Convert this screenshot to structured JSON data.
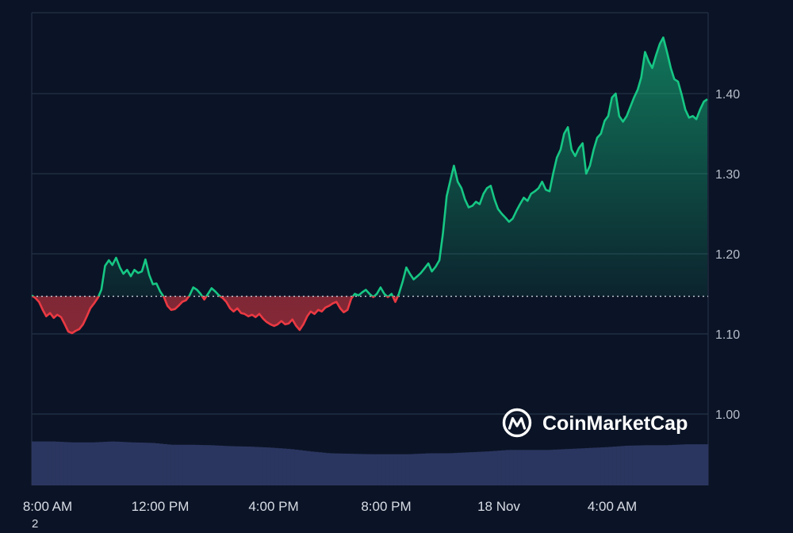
{
  "chart_data": {
    "type": "line",
    "ylim": [
      0.91,
      1.49
    ],
    "yticks": [
      "1.00",
      "1.10",
      "1.20",
      "1.30",
      "1.40"
    ],
    "xticks": [
      "8:00 AM",
      "12:00 PM",
      "4:00 PM",
      "8:00 PM",
      "18 Nov",
      "4:00 AM"
    ],
    "x_range_hours": [
      0,
      24
    ],
    "baseline": 1.147,
    "colors": {
      "up": "#16c784",
      "down": "#ea3943",
      "volume": "#2b3660",
      "grid": "#243046",
      "baseline": "#c9ced8"
    },
    "price": [
      [
        0.0,
        1.148
      ],
      [
        0.16,
        1.145
      ],
      [
        0.33,
        1.14
      ],
      [
        0.5,
        1.13
      ],
      [
        0.66,
        1.122
      ],
      [
        0.83,
        1.126
      ],
      [
        1.0,
        1.12
      ],
      [
        1.16,
        1.124
      ],
      [
        1.33,
        1.121
      ],
      [
        1.5,
        1.112
      ],
      [
        1.66,
        1.103
      ],
      [
        1.83,
        1.101
      ],
      [
        2.0,
        1.104
      ],
      [
        2.16,
        1.106
      ],
      [
        2.33,
        1.112
      ],
      [
        2.5,
        1.122
      ],
      [
        2.66,
        1.132
      ],
      [
        2.83,
        1.138
      ],
      [
        3.0,
        1.145
      ],
      [
        3.16,
        1.155
      ],
      [
        3.33,
        1.185
      ],
      [
        3.5,
        1.192
      ],
      [
        3.66,
        1.186
      ],
      [
        3.83,
        1.195
      ],
      [
        4.0,
        1.183
      ],
      [
        4.16,
        1.175
      ],
      [
        4.33,
        1.18
      ],
      [
        4.5,
        1.172
      ],
      [
        4.66,
        1.18
      ],
      [
        4.83,
        1.176
      ],
      [
        5.0,
        1.178
      ],
      [
        5.16,
        1.193
      ],
      [
        5.33,
        1.174
      ],
      [
        5.5,
        1.162
      ],
      [
        5.66,
        1.163
      ],
      [
        5.83,
        1.153
      ],
      [
        6.0,
        1.146
      ],
      [
        6.16,
        1.135
      ],
      [
        6.33,
        1.13
      ],
      [
        6.5,
        1.131
      ],
      [
        6.66,
        1.135
      ],
      [
        6.83,
        1.14
      ],
      [
        7.0,
        1.142
      ],
      [
        7.16,
        1.148
      ],
      [
        7.33,
        1.158
      ],
      [
        7.5,
        1.155
      ],
      [
        7.66,
        1.15
      ],
      [
        7.83,
        1.143
      ],
      [
        8.0,
        1.15
      ],
      [
        8.16,
        1.157
      ],
      [
        8.33,
        1.153
      ],
      [
        8.5,
        1.148
      ],
      [
        8.66,
        1.145
      ],
      [
        8.83,
        1.14
      ],
      [
        9.0,
        1.132
      ],
      [
        9.16,
        1.128
      ],
      [
        9.33,
        1.132
      ],
      [
        9.5,
        1.126
      ],
      [
        9.66,
        1.125
      ],
      [
        9.83,
        1.122
      ],
      [
        10.0,
        1.124
      ],
      [
        10.16,
        1.121
      ],
      [
        10.33,
        1.125
      ],
      [
        10.5,
        1.119
      ],
      [
        10.66,
        1.115
      ],
      [
        10.83,
        1.112
      ],
      [
        11.0,
        1.11
      ],
      [
        11.16,
        1.112
      ],
      [
        11.33,
        1.116
      ],
      [
        11.5,
        1.112
      ],
      [
        11.66,
        1.113
      ],
      [
        11.83,
        1.118
      ],
      [
        12.0,
        1.11
      ],
      [
        12.16,
        1.105
      ],
      [
        12.33,
        1.112
      ],
      [
        12.5,
        1.122
      ],
      [
        12.66,
        1.128
      ],
      [
        12.83,
        1.125
      ],
      [
        13.0,
        1.13
      ],
      [
        13.16,
        1.128
      ],
      [
        13.33,
        1.133
      ],
      [
        13.5,
        1.135
      ],
      [
        13.66,
        1.138
      ],
      [
        13.83,
        1.14
      ],
      [
        14.0,
        1.132
      ],
      [
        14.16,
        1.127
      ],
      [
        14.33,
        1.13
      ],
      [
        14.5,
        1.144
      ],
      [
        14.66,
        1.15
      ],
      [
        14.83,
        1.148
      ],
      [
        15.0,
        1.152
      ],
      [
        15.16,
        1.155
      ],
      [
        15.33,
        1.15
      ],
      [
        15.5,
        1.146
      ],
      [
        15.66,
        1.15
      ],
      [
        15.83,
        1.158
      ],
      [
        16.0,
        1.15
      ],
      [
        16.16,
        1.146
      ],
      [
        16.33,
        1.15
      ],
      [
        16.5,
        1.14
      ],
      [
        16.66,
        1.15
      ],
      [
        16.83,
        1.165
      ],
      [
        17.0,
        1.183
      ],
      [
        17.16,
        1.175
      ],
      [
        17.33,
        1.168
      ],
      [
        17.5,
        1.172
      ],
      [
        17.66,
        1.176
      ],
      [
        17.83,
        1.182
      ],
      [
        18.0,
        1.188
      ],
      [
        18.16,
        1.178
      ],
      [
        18.33,
        1.184
      ],
      [
        18.5,
        1.192
      ],
      [
        18.66,
        1.225
      ],
      [
        18.83,
        1.272
      ],
      [
        19.0,
        1.292
      ],
      [
        19.16,
        1.31
      ],
      [
        19.33,
        1.29
      ],
      [
        19.5,
        1.282
      ],
      [
        19.66,
        1.268
      ],
      [
        19.83,
        1.258
      ],
      [
        20.0,
        1.26
      ],
      [
        20.16,
        1.265
      ],
      [
        20.33,
        1.262
      ],
      [
        20.5,
        1.275
      ],
      [
        20.66,
        1.282
      ],
      [
        20.83,
        1.285
      ],
      [
        21.0,
        1.268
      ],
      [
        21.16,
        1.256
      ],
      [
        21.33,
        1.25
      ],
      [
        21.5,
        1.245
      ],
      [
        21.66,
        1.24
      ],
      [
        21.83,
        1.244
      ],
      [
        22.0,
        1.254
      ],
      [
        22.16,
        1.262
      ],
      [
        22.33,
        1.27
      ],
      [
        22.5,
        1.266
      ],
      [
        22.66,
        1.275
      ],
      [
        22.83,
        1.278
      ],
      [
        23.0,
        1.282
      ],
      [
        23.16,
        1.29
      ],
      [
        23.33,
        1.28
      ],
      [
        23.5,
        1.278
      ],
      [
        23.66,
        1.3
      ],
      [
        23.83,
        1.32
      ],
      [
        24.0,
        1.33
      ],
      [
        24.16,
        1.35
      ],
      [
        24.33,
        1.358
      ],
      [
        24.5,
        1.33
      ],
      [
        24.66,
        1.322
      ],
      [
        24.83,
        1.332
      ],
      [
        25.0,
        1.338
      ],
      [
        25.16,
        1.3
      ],
      [
        25.33,
        1.31
      ],
      [
        25.5,
        1.33
      ],
      [
        25.66,
        1.345
      ],
      [
        25.83,
        1.35
      ],
      [
        26.0,
        1.366
      ],
      [
        26.16,
        1.372
      ],
      [
        26.33,
        1.395
      ],
      [
        26.5,
        1.4
      ],
      [
        26.66,
        1.372
      ],
      [
        26.83,
        1.365
      ],
      [
        27.0,
        1.372
      ],
      [
        27.16,
        1.383
      ],
      [
        27.33,
        1.395
      ],
      [
        27.5,
        1.405
      ],
      [
        27.66,
        1.42
      ],
      [
        27.83,
        1.452
      ],
      [
        28.0,
        1.44
      ],
      [
        28.16,
        1.432
      ],
      [
        28.33,
        1.448
      ],
      [
        28.5,
        1.462
      ],
      [
        28.66,
        1.47
      ],
      [
        28.83,
        1.452
      ],
      [
        29.0,
        1.432
      ],
      [
        29.16,
        1.418
      ],
      [
        29.33,
        1.415
      ],
      [
        29.5,
        1.398
      ],
      [
        29.66,
        1.38
      ],
      [
        29.83,
        1.37
      ],
      [
        30.0,
        1.372
      ],
      [
        30.16,
        1.368
      ],
      [
        30.33,
        1.38
      ],
      [
        30.5,
        1.39
      ],
      [
        30.66,
        1.393
      ]
    ],
    "volume": [
      [
        0,
        0.093
      ],
      [
        2,
        0.093
      ],
      [
        4,
        0.091
      ],
      [
        6,
        0.091
      ],
      [
        8,
        0.093
      ],
      [
        10,
        0.091
      ],
      [
        12,
        0.09
      ],
      [
        14,
        0.086
      ],
      [
        16,
        0.086
      ],
      [
        18,
        0.085
      ],
      [
        20,
        0.083
      ],
      [
        22,
        0.082
      ],
      [
        24,
        0.08
      ],
      [
        26,
        0.077
      ],
      [
        28,
        0.072
      ],
      [
        30,
        0.068
      ],
      [
        32,
        0.067
      ],
      [
        34,
        0.066
      ],
      [
        36,
        0.066
      ],
      [
        38,
        0.066
      ],
      [
        40,
        0.068
      ],
      [
        42,
        0.068
      ],
      [
        44,
        0.07
      ],
      [
        46,
        0.072
      ],
      [
        48,
        0.075
      ],
      [
        50,
        0.075
      ],
      [
        52,
        0.075
      ],
      [
        54,
        0.077
      ],
      [
        56,
        0.079
      ],
      [
        58,
        0.081
      ],
      [
        60,
        0.084
      ],
      [
        62,
        0.085
      ],
      [
        64,
        0.085
      ],
      [
        66,
        0.087
      ],
      [
        68,
        0.087
      ]
    ]
  },
  "watermark": {
    "text": "CoinMarketCap",
    "icon": "coinmarketcap-logo-icon"
  },
  "stray_label": "2"
}
